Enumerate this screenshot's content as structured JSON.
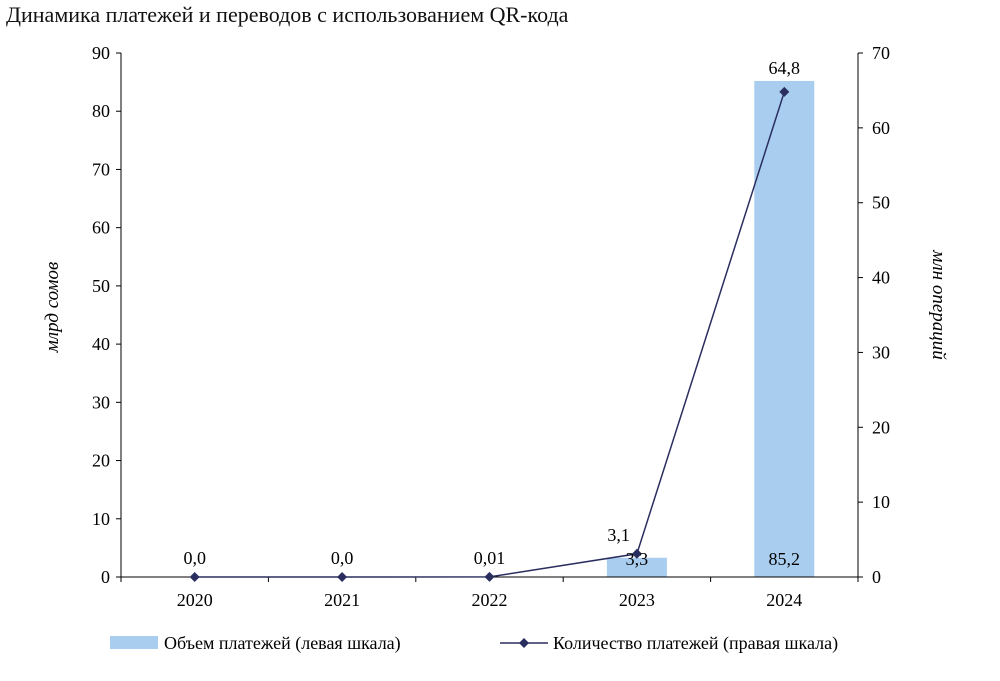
{
  "title": "Динамика платежей и переводов с использованием QR-кода",
  "colors": {
    "bar": "#a9cdee",
    "line": "#2a2e5e",
    "axis": "#000000"
  },
  "chart_data": {
    "type": "bar",
    "title": "Динамика платежей и переводов с использованием QR-кода",
    "categories": [
      "2020",
      "2021",
      "2022",
      "2023",
      "2024"
    ],
    "ylabel_left": "млрд сомов",
    "ylabel_right": "млн операций",
    "ylim_left": [
      0,
      90
    ],
    "ylim_right": [
      0,
      70
    ],
    "yticks_left": [
      "0",
      "10",
      "20",
      "30",
      "40",
      "50",
      "60",
      "70",
      "80",
      "90"
    ],
    "yticks_right": [
      "0",
      "10",
      "20",
      "30",
      "40",
      "50",
      "60",
      "70"
    ],
    "legend_position": "bottom",
    "grid": false,
    "series": [
      {
        "name": "Объем платежей (левая шкала)",
        "type": "bar",
        "axis": "left",
        "values": [
          0,
          0,
          0,
          3.3,
          85.2
        ],
        "labels": [
          "",
          "",
          "",
          "3,3",
          "85,2"
        ]
      },
      {
        "name": "Количество платежей (правая шкала)",
        "type": "line",
        "axis": "right",
        "marker": "diamond",
        "values": [
          0,
          0,
          0.01,
          3.1,
          64.8
        ],
        "labels": [
          "0,0",
          "0,0",
          "0,01",
          "3,1",
          "64,8"
        ]
      }
    ]
  }
}
